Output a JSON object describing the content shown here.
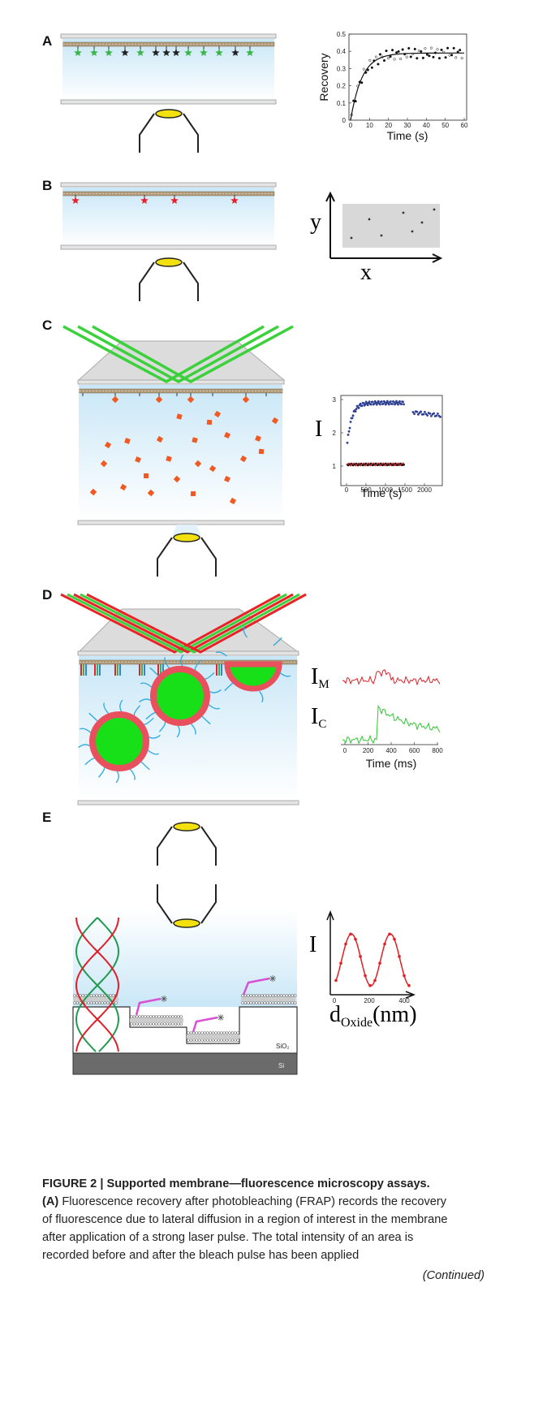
{
  "panels": [
    {
      "label": "A",
      "plot": {
        "ylabel": "Recovery",
        "xlabel": "Time (s)",
        "yticks": [
          "0.5",
          "0.4",
          "0.3",
          "0.2",
          "0.1",
          "0"
        ],
        "xticks": [
          "0",
          "10",
          "20",
          "30",
          "40",
          "50",
          "60"
        ]
      }
    },
    {
      "label": "B",
      "plot": {
        "ylabel": "y",
        "xlabel": "x"
      }
    },
    {
      "label": "C",
      "plot": {
        "ylabel": "I",
        "xlabel": "Time (s)",
        "yticks": [
          "3",
          "2",
          "1"
        ],
        "xticks": [
          "0",
          "500",
          "1000",
          "1500",
          "2000"
        ]
      }
    },
    {
      "label": "D",
      "plot": {
        "traces": [
          {
            "label": "I",
            "subscript": "M"
          },
          {
            "label": "I",
            "subscript": "C"
          }
        ],
        "xlabel": "Time (ms)",
        "xticks": [
          "0",
          "200",
          "400",
          "600",
          "800"
        ]
      }
    },
    {
      "label": "E",
      "plot": {
        "ylabel": "I",
        "xlabel": "d",
        "xlabel_subscript": "Oxide",
        "xlabel_unit": "(nm)",
        "xticks": [
          "0",
          "200",
          "400"
        ]
      },
      "layers": [
        "SiO₂",
        "Si"
      ]
    }
  ],
  "caption": {
    "title": "FIGURE 2 | Supported membrane—fluorescence microscopy assays.",
    "part_label": "(A)",
    "lines": [
      " Fluorescence recovery after photobleaching (FRAP) records the recovery",
      "of fluorescence due to lateral diffusion in a region of interest in the membrane",
      "after application of a strong laser pulse. The total intensity of an area is",
      "recorded before and after the bleach pulse has been applied"
    ],
    "continued": "(Continued)"
  }
}
